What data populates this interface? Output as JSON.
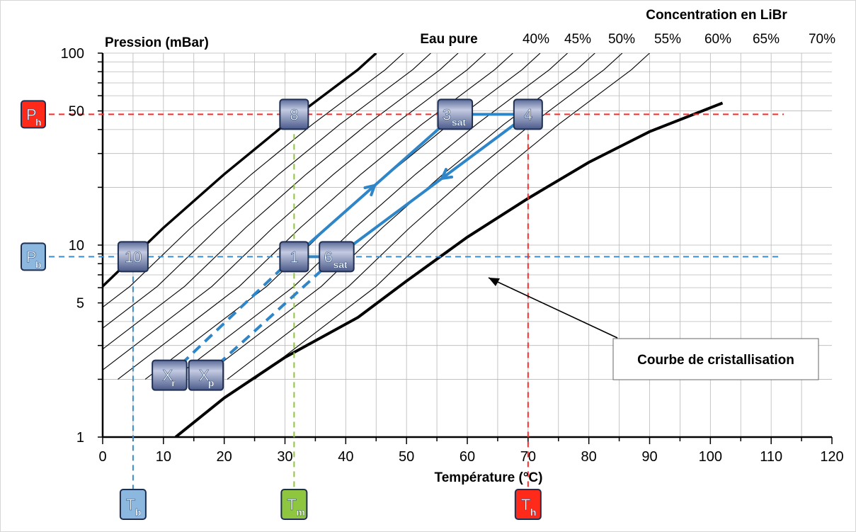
{
  "chart_data": {
    "type": "line",
    "title": "",
    "xlabel": "Température (°C)",
    "ylabel": "Pression (mBar)",
    "xlim": [
      0,
      120
    ],
    "ylim": [
      1,
      100
    ],
    "yscale": "log",
    "x_ticks": [
      "0",
      "10",
      "20",
      "30",
      "40",
      "50",
      "60",
      "70",
      "80",
      "90",
      "100",
      "110",
      "120"
    ],
    "y_ticks": [
      {
        "v": 1,
        "label": "1"
      },
      {
        "v": 5,
        "label": "5"
      },
      {
        "v": 10,
        "label": "10"
      },
      {
        "v": 50,
        "label": "50"
      },
      {
        "v": 100,
        "label": "100"
      }
    ],
    "concentration_title": "Concentration en LiBr",
    "pure_water_label": "Eau pure",
    "concentration_labels": [
      "40%",
      "45%",
      "50%",
      "55%",
      "60%",
      "65%",
      "70%"
    ],
    "iso_lines_offsets": [
      4.5,
      9,
      13.5,
      18,
      22.5,
      27,
      31.5,
      36,
      40.5,
      45
    ],
    "pure_water_curve": [
      [
        0,
        6.1
      ],
      [
        10,
        12.3
      ],
      [
        20,
        23.4
      ],
      [
        30,
        42.5
      ],
      [
        42,
        82
      ],
      [
        45,
        100
      ]
    ],
    "crystallization_curve": [
      [
        12,
        1
      ],
      [
        20,
        1.6
      ],
      [
        30,
        2.6
      ],
      [
        42,
        4.2
      ],
      [
        50,
        6.5
      ],
      [
        60,
        11
      ],
      [
        70,
        17.5
      ],
      [
        80,
        27
      ],
      [
        90,
        39
      ],
      [
        102,
        55
      ]
    ],
    "crystallization_label": "Courbe de cristallisation",
    "ph_value": 48,
    "pb_value": 8.7,
    "tb_value": 5,
    "tm_value": 31.5,
    "th_value": 70,
    "ph_label": "P",
    "ph_sub": "h",
    "pb_label": "P",
    "pb_sub": "b",
    "tb_label": "T",
    "tb_sub": "b",
    "tm_label": "T",
    "tm_sub": "m",
    "th_label": "T",
    "th_sub": "h",
    "points": [
      {
        "id": "8",
        "label": "8",
        "sub": "",
        "x": 31.5,
        "y": 48
      },
      {
        "id": "3sat",
        "label": "3",
        "sub": "sat",
        "x": 58,
        "y": 48
      },
      {
        "id": "4",
        "label": "4",
        "sub": "",
        "x": 70,
        "y": 48
      },
      {
        "id": "10",
        "label": "10",
        "sub": "",
        "x": 5,
        "y": 8.7
      },
      {
        "id": "1",
        "label": "1",
        "sub": "",
        "x": 31.5,
        "y": 8.7
      },
      {
        "id": "6sat",
        "label": "6",
        "sub": "sat",
        "x": 38.5,
        "y": 8.7
      },
      {
        "id": "xr",
        "label": "X",
        "sub": "r",
        "x": 11,
        "y": 2.1
      },
      {
        "id": "xp",
        "label": "X",
        "sub": "p",
        "x": 17,
        "y": 2.1
      }
    ],
    "cycle_lines": [
      {
        "name": "absorber-to-generator",
        "solid": true,
        "pts": [
          [
            31.5,
            8.7
          ],
          [
            58,
            48
          ]
        ],
        "arrow_at": 0.5,
        "dir": 1
      },
      {
        "name": "generator-to-absorber",
        "solid": true,
        "pts": [
          [
            70,
            48
          ],
          [
            38.5,
            8.7
          ]
        ],
        "arrow_at": 0.45,
        "dir": 1
      },
      {
        "name": "top-link",
        "solid": true,
        "pts": [
          [
            58,
            48
          ],
          [
            70,
            48
          ]
        ]
      },
      {
        "name": "bottom-link",
        "solid": true,
        "pts": [
          [
            31.5,
            8.7
          ],
          [
            38.5,
            8.7
          ]
        ]
      },
      {
        "name": "xr-dashed",
        "solid": false,
        "pts": [
          [
            11,
            2.1
          ],
          [
            31.5,
            8.7
          ]
        ]
      },
      {
        "name": "xp-dashed",
        "solid": false,
        "pts": [
          [
            17,
            2.1
          ],
          [
            38.5,
            8.7
          ]
        ]
      }
    ],
    "grid": true,
    "colors": {
      "ph": "#ff2a1a",
      "pb": "#8cb8e0",
      "tb": "#8cb8e0",
      "tm": "#8ec63f",
      "th": "#ff2a1a",
      "blue_line": "#2e86c8",
      "red_dash": "#ff2a2a",
      "blue_dash": "#3a8fd0",
      "green_dash": "#8ec63f"
    }
  }
}
